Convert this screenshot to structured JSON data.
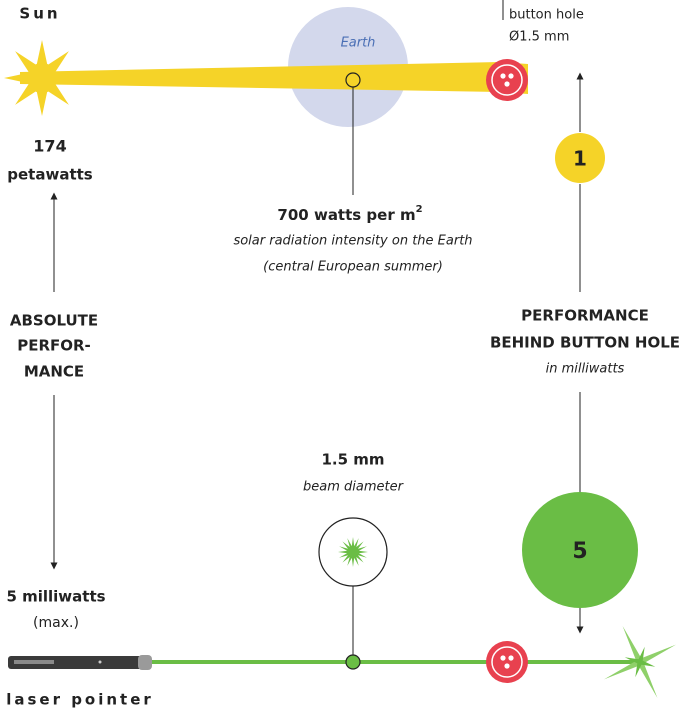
{
  "sun": {
    "label": "Sun",
    "power_value": "174",
    "power_unit": "petawatts"
  },
  "earth": {
    "label": "Earth",
    "intensity": "700 watts per m",
    "intensity_exponent": "2",
    "note_1": "solar radiation intensity on the Earth",
    "note_2": "(central European summer)"
  },
  "button_hole": {
    "label": "button hole",
    "diameter": "Ø1.5 mm"
  },
  "absolute_performance": {
    "lines": [
      "ABSOLUTE",
      "PERFOR-",
      "MANCE"
    ]
  },
  "performance_behind_hole": {
    "lines": [
      "PERFORMANCE",
      "BEHIND BUTTON HOLE"
    ],
    "unit": "in milliwatts",
    "sun_value": 1,
    "laser_value": 5
  },
  "laser": {
    "beam_size": "1.5 mm",
    "beam_label": "beam diameter",
    "power": "5 milliwatts",
    "power_note": "(max.)",
    "label": "laser pointer"
  }
}
